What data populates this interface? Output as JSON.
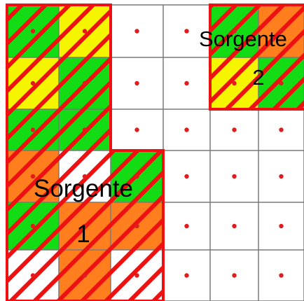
{
  "colors": {
    "background": "#ffffff",
    "gridline": "#7a7a7a",
    "dot": "#e01c1c",
    "hatch": "#ee1111",
    "outline": "#ee1111",
    "cell_colors": {
      "G": "#14dc14",
      "Y": "#f5f500",
      "O": "#ff7f1e",
      "W": "#ffffff"
    }
  },
  "grid": {
    "rows": [
      [
        "G",
        "Y",
        "W",
        "W",
        "G",
        "O"
      ],
      [
        "Y",
        "G",
        "W",
        "W",
        "Y",
        "G"
      ],
      [
        "G",
        "G",
        "W",
        "W",
        "W",
        "W"
      ],
      [
        "O",
        "W",
        "G",
        "W",
        "W",
        "W"
      ],
      [
        "G",
        "O",
        "O",
        "W",
        "W",
        "W"
      ],
      [
        "W",
        "O",
        "W",
        "W",
        "W",
        "W"
      ]
    ],
    "hatched": [
      [
        1,
        1,
        0,
        0,
        1,
        1
      ],
      [
        1,
        1,
        0,
        0,
        1,
        1
      ],
      [
        1,
        1,
        0,
        0,
        0,
        0
      ],
      [
        1,
        1,
        1,
        0,
        0,
        0
      ],
      [
        1,
        1,
        1,
        0,
        0,
        0
      ],
      [
        1,
        1,
        1,
        0,
        0,
        0
      ]
    ]
  },
  "sources": [
    {
      "name": "Sorgente",
      "number": "1"
    },
    {
      "name": "Sorgente",
      "number": "2"
    }
  ]
}
